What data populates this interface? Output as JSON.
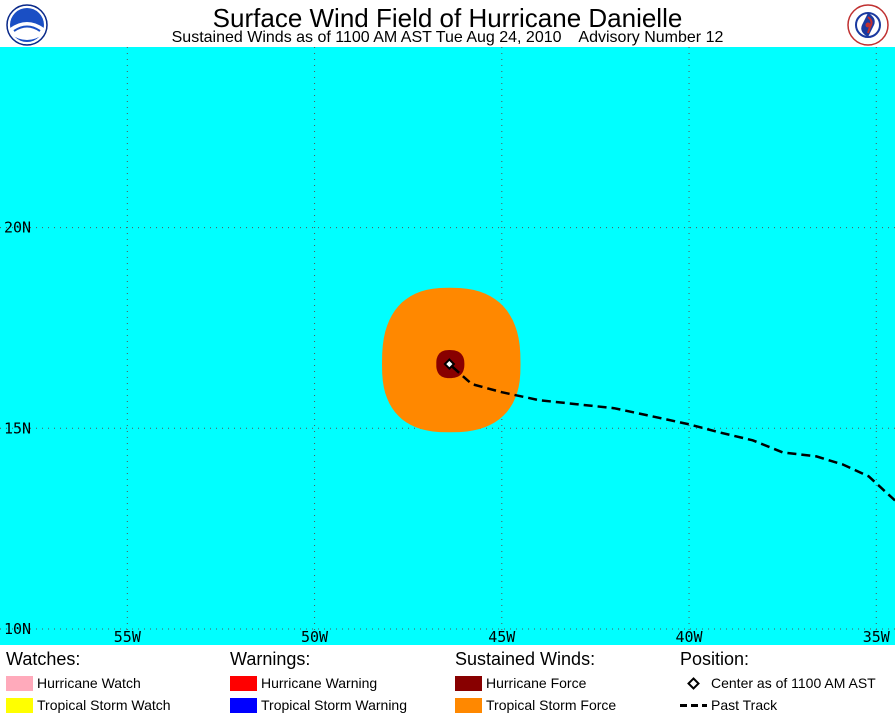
{
  "header": {
    "title": "Surface Wind Field of Hurricane Danielle",
    "subtitle": "Sustained Winds as of 1100 AM AST Tue Aug 24, 2010    Advisory Number 12"
  },
  "logos": {
    "left": "noaa-logo",
    "right": "nws-logo"
  },
  "map": {
    "ocean_color": "#00ffff",
    "grid": true,
    "lon_labels": [
      "55W",
      "50W",
      "45W",
      "40W",
      "35W"
    ],
    "lat_labels": [
      "20N",
      "15N",
      "10N"
    ],
    "lon_ticks": [
      -55,
      -50,
      -45,
      -40,
      -35
    ],
    "lat_ticks": [
      20,
      15,
      10
    ],
    "lon_range": [
      -58.4,
      -34.5
    ],
    "lat_range": [
      9.6,
      24.5
    ],
    "center": {
      "lon": -46.4,
      "lat": 16.6
    },
    "tropical_storm_force_extent_deg": {
      "north": 1.9,
      "south": 1.7,
      "east": 1.9,
      "west": 1.8
    },
    "hurricane_force_extent_deg": {
      "north": 0.35,
      "south": 0.35,
      "east": 0.4,
      "west": 0.35
    },
    "past_track": [
      [
        -34.5,
        13.2
      ],
      [
        -35.2,
        13.8
      ],
      [
        -35.9,
        14.1
      ],
      [
        -36.6,
        14.3
      ],
      [
        -37.5,
        14.4
      ],
      [
        -38.3,
        14.7
      ],
      [
        -39.2,
        14.9
      ],
      [
        -40.0,
        15.1
      ],
      [
        -41.0,
        15.3
      ],
      [
        -42.0,
        15.5
      ],
      [
        -43.0,
        15.6
      ],
      [
        -44.0,
        15.7
      ],
      [
        -45.0,
        15.9
      ],
      [
        -45.8,
        16.1
      ],
      [
        -46.4,
        16.6
      ]
    ]
  },
  "legend": {
    "watches": {
      "heading": "Watches:",
      "items": [
        {
          "label": "Hurricane Watch",
          "color": "#ffaabb"
        },
        {
          "label": "Tropical Storm Watch",
          "color": "#ffff00"
        }
      ]
    },
    "warnings": {
      "heading": "Warnings:",
      "items": [
        {
          "label": "Hurricane Warning",
          "color": "#ff0000"
        },
        {
          "label": "Tropical Storm Warning",
          "color": "#0000ff"
        }
      ]
    },
    "winds": {
      "heading": "Sustained Winds:",
      "items": [
        {
          "label": "Hurricane Force",
          "color": "#880000"
        },
        {
          "label": "Tropical Storm Force",
          "color": "#ff8800"
        }
      ]
    },
    "position": {
      "heading": "Position:",
      "items": [
        {
          "label": "Center as of 1100 AM AST",
          "icon": "diamond-icon"
        },
        {
          "label": "Past Track",
          "icon": "dashed-line-icon"
        }
      ]
    }
  }
}
